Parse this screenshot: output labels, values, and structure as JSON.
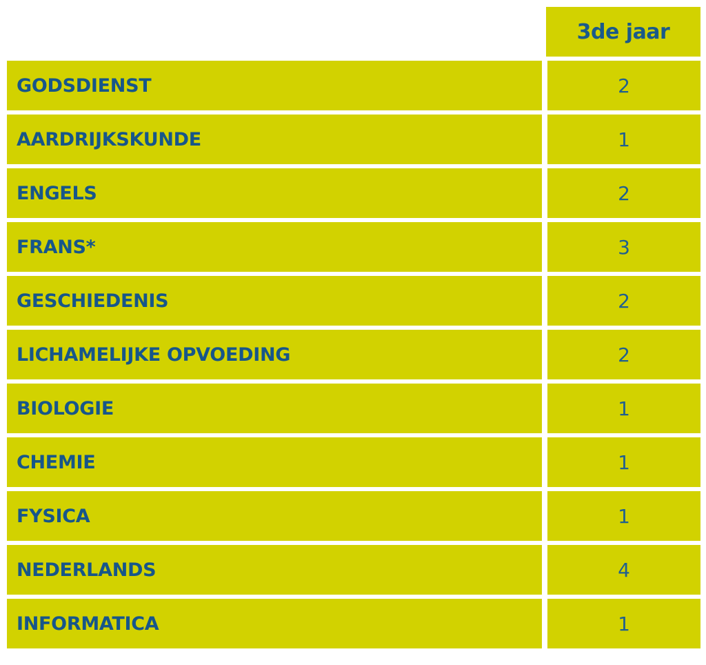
{
  "table": {
    "header": "3de jaar",
    "rows": [
      {
        "subject": "GODSDIENST",
        "hours": "2"
      },
      {
        "subject": "AARDRIJKSKUNDE",
        "hours": "1"
      },
      {
        "subject": "ENGELS",
        "hours": "2"
      },
      {
        "subject": "FRANS*",
        "hours": "3"
      },
      {
        "subject": "GESCHIEDENIS",
        "hours": "2"
      },
      {
        "subject": "LICHAMELIJKE OPVOEDING",
        "hours": "2"
      },
      {
        "subject": "BIOLOGIE",
        "hours": "1"
      },
      {
        "subject": "CHEMIE",
        "hours": "1"
      },
      {
        "subject": "FYSICA",
        "hours": "1"
      },
      {
        "subject": "NEDERLANDS",
        "hours": "4"
      },
      {
        "subject": "INFORMATICA",
        "hours": "1"
      }
    ]
  },
  "colors": {
    "cell_background": "#d2d200",
    "text": "#17568a",
    "page_background": "#ffffff"
  }
}
